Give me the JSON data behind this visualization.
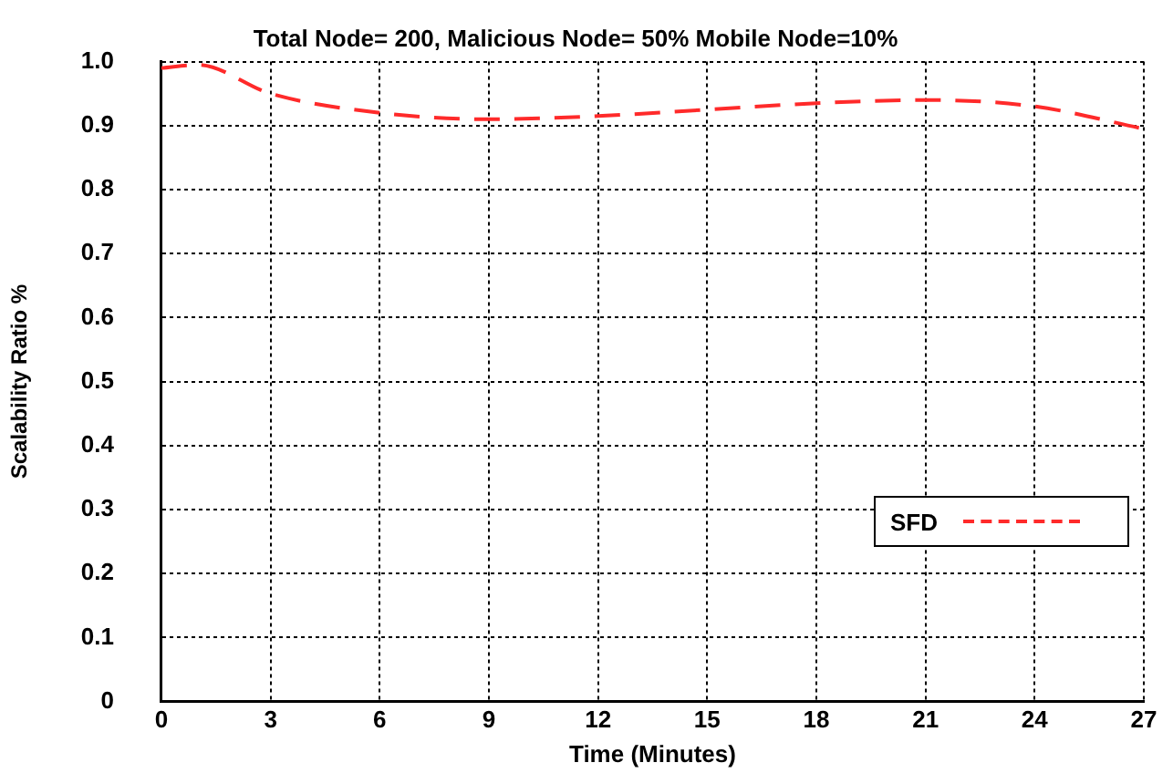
{
  "chart_data": {
    "type": "line",
    "title": "Total Node= 200, Malicious Node= 50% Mobile Node=10%",
    "xlabel": "Time (Minutes)",
    "ylabel": "Scalability Ratio %",
    "x": [
      0,
      1,
      3,
      6,
      9,
      12,
      15,
      18,
      21,
      24,
      27
    ],
    "series": [
      {
        "name": "SFD",
        "color": "#ff2a2a",
        "values": [
          0.99,
          0.995,
          0.95,
          0.92,
          0.91,
          0.915,
          0.925,
          0.935,
          0.94,
          0.93,
          0.895
        ]
      }
    ],
    "xlim": [
      0,
      27
    ],
    "xticks": [
      0,
      3,
      6,
      9,
      12,
      15,
      18,
      21,
      24,
      27
    ],
    "ylim": [
      0,
      1
    ],
    "yticks": [
      0,
      0.1,
      0.2,
      0.3,
      0.4,
      0.5,
      0.6,
      0.7,
      0.8,
      0.9,
      {
        "value": 1,
        "label": "1.0"
      }
    ],
    "grid": true,
    "legend": "right",
    "marker": "none",
    "line_style": "dashed"
  }
}
